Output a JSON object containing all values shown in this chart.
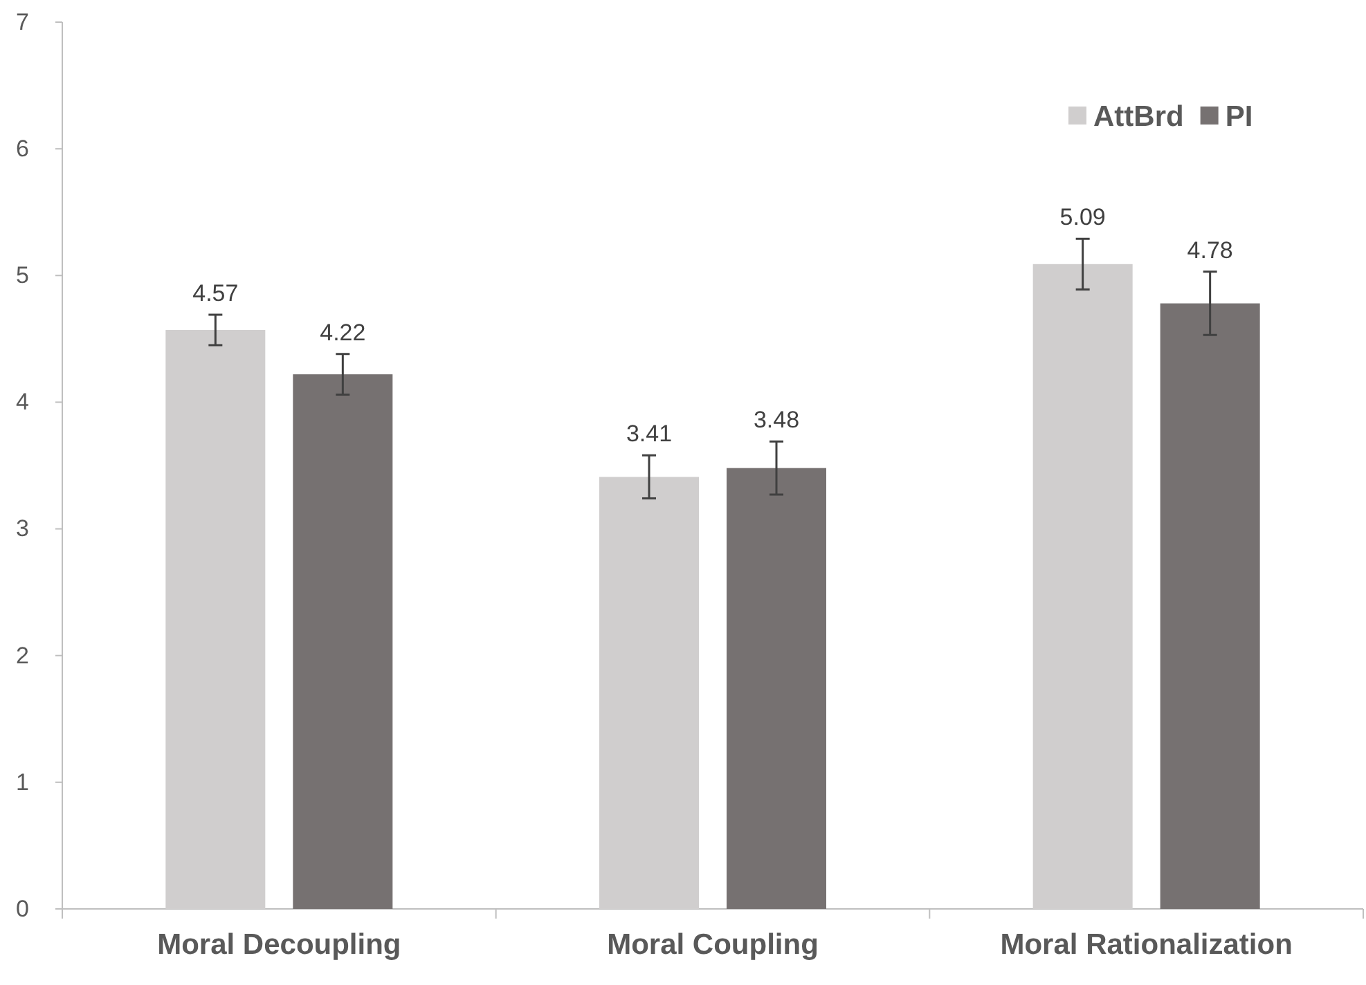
{
  "chart_data": {
    "type": "bar",
    "categories": [
      "Moral Decoupling",
      "Moral Coupling",
      "Moral Rationalization"
    ],
    "series": [
      {
        "name": "AttBrd",
        "color": "#d0cece",
        "values": [
          4.57,
          3.41,
          5.09
        ],
        "errors": [
          0.12,
          0.17,
          0.2
        ]
      },
      {
        "name": "PI",
        "color": "#767171",
        "values": [
          4.22,
          3.48,
          4.78
        ],
        "errors": [
          0.16,
          0.21,
          0.25
        ]
      }
    ],
    "ylim": [
      0,
      7
    ],
    "yticks": [
      0,
      1,
      2,
      3,
      4,
      5,
      6,
      7
    ],
    "data_labels": true,
    "legend": "top right",
    "grid": false
  }
}
